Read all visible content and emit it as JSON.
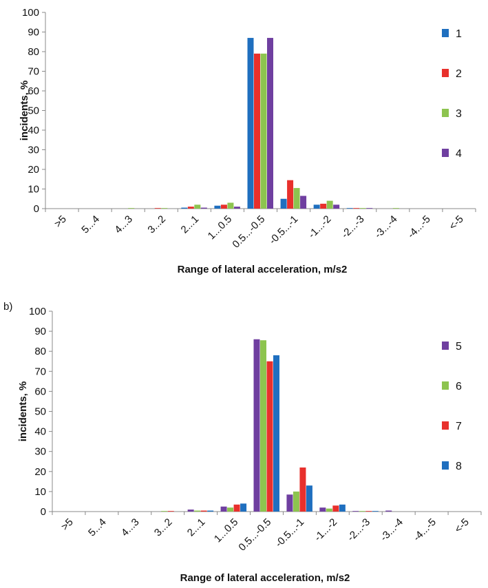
{
  "chart_data": [
    {
      "type": "bar",
      "panel_label": "",
      "categories": [
        ">5",
        "5...4",
        "4...3",
        "3...2",
        "2...1",
        "1...0.5",
        "0.5...-0.5",
        "-0.5...-1",
        "-1...-2",
        "-2...-3",
        "-3...-4",
        "-4...-5",
        "<-5"
      ],
      "series": [
        {
          "name": "1",
          "color": "#1f6fbf",
          "values": [
            0,
            0,
            0,
            0,
            0.5,
            1.5,
            87,
            5,
            2,
            0.3,
            0,
            0,
            0
          ]
        },
        {
          "name": "2",
          "color": "#e8302c",
          "values": [
            0,
            0,
            0,
            0.3,
            1,
            2,
            79,
            14.5,
            2.5,
            0.3,
            0,
            0,
            0
          ]
        },
        {
          "name": "3",
          "color": "#8dc44f",
          "values": [
            0,
            0,
            0.3,
            0.3,
            2,
            3,
            79,
            10.5,
            4,
            0.3,
            0.3,
            0,
            0
          ]
        },
        {
          "name": "4",
          "color": "#6f3fa0",
          "values": [
            0,
            0,
            0,
            0,
            0.5,
            1,
            87,
            6.5,
            2,
            0.3,
            0,
            0,
            0
          ]
        }
      ],
      "xlabel": "Range of lateral acceleration,  m/s2",
      "ylabel": "incidents, %",
      "ylim": [
        0,
        100
      ],
      "yticks": [
        0,
        10,
        20,
        30,
        40,
        50,
        60,
        70,
        80,
        90,
        100
      ],
      "grid": false,
      "legend": "right"
    },
    {
      "type": "bar",
      "panel_label": "b)",
      "categories": [
        ">5",
        "5...4",
        "4...3",
        "3...2",
        "2...1",
        "1...0.5",
        "0.5...-0.5",
        "-0.5...-1",
        "-1...-2",
        "-2...-3",
        "-3...-4",
        "-4...-5",
        "<-5"
      ],
      "series": [
        {
          "name": "5",
          "color": "#6f3fa0",
          "values": [
            0,
            0,
            0,
            0,
            1,
            2.5,
            86,
            8.5,
            2,
            0.3,
            0.5,
            0,
            0
          ]
        },
        {
          "name": "6",
          "color": "#8dc44f",
          "values": [
            0,
            0,
            0,
            0.3,
            0.5,
            2,
            85.5,
            10,
            1.5,
            0.3,
            0,
            0,
            0
          ]
        },
        {
          "name": "7",
          "color": "#e8302c",
          "values": [
            0,
            0,
            0,
            0.3,
            0.5,
            3.5,
            75,
            22,
            3,
            0.3,
            0,
            0,
            0
          ]
        },
        {
          "name": "8",
          "color": "#1f6fbf",
          "values": [
            0,
            0,
            0,
            0,
            0.5,
            4,
            78,
            13,
            3.5,
            0.3,
            0,
            0,
            0
          ]
        }
      ],
      "xlabel": "Range of lateral acceleration,  m/s2",
      "ylabel": "incidents, %",
      "ylim": [
        0,
        100
      ],
      "yticks": [
        0,
        10,
        20,
        30,
        40,
        50,
        60,
        70,
        80,
        90,
        100
      ],
      "grid": false,
      "legend": "right"
    }
  ]
}
